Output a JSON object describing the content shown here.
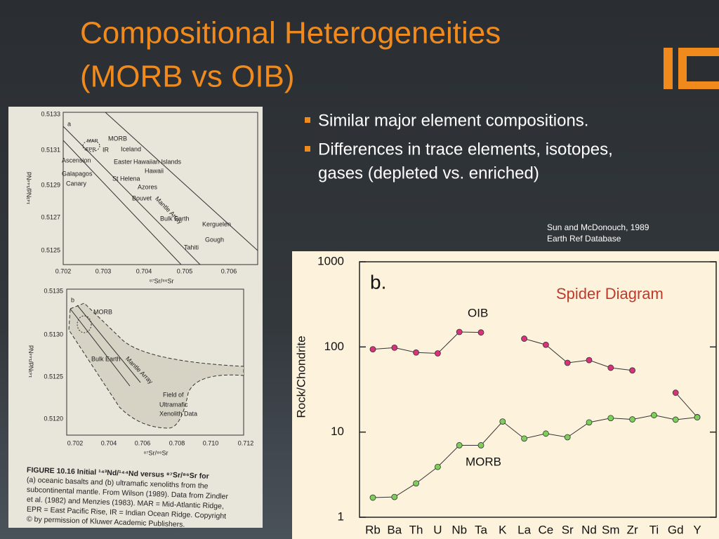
{
  "title": [
    "Compositional Heterogeneities",
    "(MORB vs OIB)"
  ],
  "bullets": [
    "Similar major element compositions.",
    "Differences in trace elements, isotopes,",
    "gases (depleted vs. enriched)"
  ],
  "source": [
    "Sun and McDonouch, 1989",
    "Earth Ref Database"
  ],
  "figure": {
    "panel_a": {
      "yticks": [
        "0.5133",
        "0.5131",
        "0.5129",
        "0.5127",
        "0.5125"
      ],
      "xticks": [
        "0.702",
        "0.703",
        "0.704",
        "0.705",
        "0.706"
      ],
      "ylabel": "¹⁴³Nd/¹⁴⁴Nd",
      "xlabel": "⁸⁷Sr/⁸⁶Sr",
      "labels": [
        "a",
        "MORB",
        "MAR",
        "EPR",
        "IR",
        "Iceland",
        "Ascension",
        "Easter",
        "Hawaiian Islands",
        "Galapagos",
        "Hawaii",
        "Canary",
        "St Helena",
        "Azores",
        "Bouvet",
        "Mantle Array",
        "Bulk Earth",
        "Kerguelen",
        "Gough",
        "Tahiti"
      ]
    },
    "panel_b": {
      "yticks": [
        "0.5135",
        "0.5130",
        "0.5125",
        "0.5120"
      ],
      "xticks": [
        "0.702",
        "0.704",
        "0.706",
        "0.708",
        "0.710",
        "0.712"
      ],
      "ylabel": "¹⁴³Nd/¹⁴⁴Nd",
      "xlabel": "⁸⁷Sr/⁸⁶Sr",
      "labels": [
        "b",
        "MORB",
        "Bulk Earth",
        "Mantle Array",
        "Field of",
        "Ultramafic",
        "Xenolith Data"
      ]
    },
    "caption": [
      "FIGURE 10.16  Initial ¹⁴³Nd/¹⁴⁴Nd versus ⁸⁷Sr/⁸⁶Sr for",
      "(a) oceanic basalts and (b) ultramafic xenoliths from the",
      "subcontinental mantle. From Wilson (1989). Data from Zindler",
      "et al. (1982) and Menzies (1983). MAR = Mid-Atlantic Ridge,",
      "EPR = East Pacific Rise, IR = Indian Ocean Ridge. Copyright",
      "© by permission of Kluwer Academic Publishers."
    ]
  },
  "chart_data": {
    "type": "line",
    "panel_label": "b.",
    "title": "Spider Diagram",
    "ylabel": "Rock/Chondrite",
    "log_scale": true,
    "categories": [
      "Rb",
      "Ba",
      "Th",
      "U",
      "Nb",
      "Ta",
      "K",
      "La",
      "Ce",
      "Sr",
      "Nd",
      "Sm",
      "Zr",
      "Ti",
      "Gd",
      "Y"
    ],
    "ylim": [
      1,
      1000
    ],
    "yticks": [
      1,
      10,
      100,
      1000
    ],
    "series": [
      {
        "name": "OIB",
        "color": "#d6337a",
        "values": [
          94,
          98,
          86,
          84,
          150,
          148,
          null,
          125,
          106,
          65,
          70,
          57,
          53,
          null,
          29,
          15
        ]
      },
      {
        "name": "MORB",
        "color": "#7ccf5a",
        "values": [
          1.7,
          1.73,
          2.5,
          3.9,
          7,
          7,
          13.3,
          8.4,
          9.6,
          8.7,
          13,
          14.6,
          14.1,
          15.8,
          14,
          14.9
        ]
      }
    ]
  }
}
